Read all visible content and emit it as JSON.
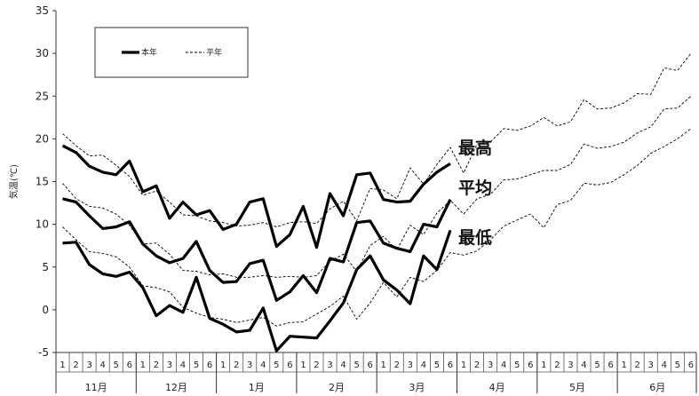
{
  "chart_data": {
    "type": "line",
    "ylabel": "気温(℃)",
    "ylim": [
      -5,
      35
    ],
    "yticks": [
      "-5",
      "0",
      "5",
      "10",
      "15",
      "20",
      "25",
      "30",
      "35"
    ],
    "grid": false,
    "legend": {
      "placement": "top-left",
      "entries": [
        "本年",
        "平年"
      ]
    },
    "months": [
      "11月",
      "12月",
      "1月",
      "2月",
      "3月",
      "4月",
      "5月",
      "6月"
    ],
    "pentads": [
      "1",
      "2",
      "3",
      "4",
      "5",
      "6"
    ],
    "series_labels": {
      "max": "最高",
      "mean": "平均",
      "min": "最低"
    },
    "series": [
      {
        "key": "max",
        "kind": "current",
        "values": [
          19.2,
          18.4,
          16.8,
          16.1,
          15.8,
          17.4,
          13.8,
          14.5,
          10.7,
          12.6,
          11.1,
          11.6,
          9.4,
          10.0,
          12.6,
          13.0,
          7.4,
          8.8,
          12.1,
          7.3,
          13.6,
          11.0,
          15.8,
          16.0,
          12.9,
          12.6,
          12.7,
          14.7,
          16.1,
          17.1
        ]
      },
      {
        "key": "max",
        "kind": "normal",
        "values": [
          20.6,
          19.2,
          18.0,
          18.1,
          16.9,
          15.6,
          13.4,
          13.9,
          12.6,
          11.1,
          11.0,
          10.4,
          10.2,
          9.8,
          9.9,
          10.2,
          9.7,
          10.2,
          10.3,
          10.1,
          11.8,
          12.7,
          10.4,
          14.2,
          14.0,
          13.0,
          16.6,
          14.7,
          17.0,
          19.0,
          16.0,
          19.4,
          19.6,
          21.2,
          21.0,
          21.5,
          22.5,
          21.5,
          22.0,
          24.6,
          23.5,
          23.6,
          24.2,
          25.3,
          25.2,
          28.3,
          28.0,
          30.0
        ]
      },
      {
        "key": "mean",
        "kind": "current",
        "values": [
          13.0,
          12.6,
          11.0,
          9.5,
          9.7,
          10.3,
          7.7,
          6.3,
          5.5,
          6.0,
          8.0,
          4.6,
          3.2,
          3.3,
          5.4,
          5.8,
          1.1,
          2.1,
          4.0,
          2.0,
          6.0,
          5.6,
          10.2,
          10.4,
          7.8,
          7.2,
          6.8,
          10.0,
          9.7,
          12.9
        ]
      },
      {
        "key": "mean",
        "kind": "normal",
        "values": [
          14.8,
          13.0,
          12.1,
          11.9,
          11.2,
          9.9,
          7.7,
          7.8,
          6.5,
          4.6,
          4.5,
          4.1,
          4.2,
          3.8,
          3.8,
          4.0,
          3.8,
          3.9,
          3.8,
          4.0,
          5.7,
          6.5,
          4.5,
          7.5,
          8.6,
          7.0,
          9.9,
          8.8,
          11.3,
          12.8,
          11.2,
          13.0,
          13.5,
          15.2,
          15.3,
          15.8,
          16.3,
          16.3,
          17.0,
          19.4,
          18.9,
          19.1,
          19.6,
          20.7,
          21.4,
          23.5,
          23.6,
          25.0
        ]
      },
      {
        "key": "min",
        "kind": "current",
        "values": [
          7.8,
          7.9,
          5.3,
          4.2,
          3.9,
          4.4,
          2.6,
          -0.7,
          0.5,
          -0.3,
          3.8,
          -1.0,
          -1.7,
          -2.6,
          -2.4,
          0.2,
          -4.8,
          -3.1,
          -3.2,
          -3.3,
          -1.3,
          0.8,
          4.7,
          6.3,
          3.5,
          2.3,
          0.7,
          6.3,
          4.7,
          9.3
        ]
      },
      {
        "key": "min",
        "kind": "normal",
        "values": [
          9.7,
          8.2,
          6.8,
          6.6,
          6.2,
          5.0,
          2.8,
          2.6,
          2.1,
          0.3,
          -0.4,
          -0.9,
          -1.1,
          -1.5,
          -1.2,
          -0.9,
          -1.9,
          -1.5,
          -1.4,
          -0.5,
          0.4,
          1.6,
          -1.1,
          0.8,
          3.2,
          1.5,
          3.8,
          3.3,
          4.6,
          6.7,
          6.4,
          6.9,
          8.2,
          9.8,
          10.5,
          11.2,
          9.6,
          12.3,
          12.8,
          14.8,
          14.6,
          14.9,
          15.8,
          16.9,
          18.3,
          19.1,
          20.0,
          21.2
        ]
      }
    ]
  }
}
